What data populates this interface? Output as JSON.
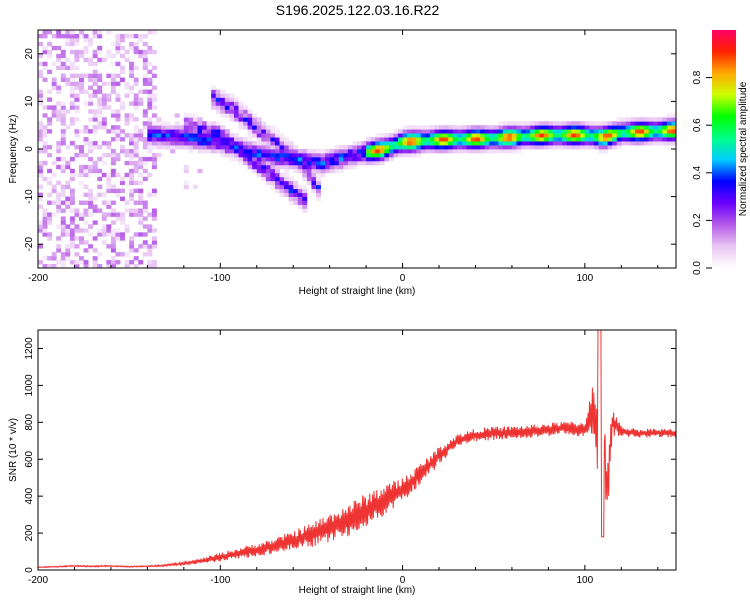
{
  "title": "S196.2025.122.03.16.R22",
  "chart_data": [
    {
      "type": "heatmap",
      "xlabel": "Height of straight line (km)",
      "ylabel": "Frequency (Hz)",
      "xlim": [
        -200,
        150
      ],
      "ylim": [
        -25,
        25
      ],
      "x_ticks": [
        -200,
        -100,
        0,
        100
      ],
      "y_ticks": [
        -20,
        -10,
        0,
        10,
        20
      ],
      "colorbar": {
        "label": "Normalized spectral amplitude",
        "range": [
          0,
          1
        ],
        "ticks": [
          "0.0",
          "0.2",
          "0.4",
          "0.6",
          "0.8"
        ],
        "colors": [
          "#ffffff",
          "#e9c6f3",
          "#b55ae8",
          "#6b00ff",
          "#0000ff",
          "#00ccff",
          "#00ff88",
          "#00ff00",
          "#ccff00",
          "#ffaa00",
          "#ff2200",
          "#ff0066"
        ]
      },
      "ridges": [
        {
          "name": "main-ridge",
          "points": [
            [
              -140,
              3
            ],
            [
              -120,
              2.5
            ],
            [
              -100,
              1.5
            ],
            [
              -80,
              -1
            ],
            [
              -60,
              -2
            ],
            [
              -45,
              -3
            ],
            [
              -35,
              -2
            ],
            [
              -25,
              -1
            ],
            [
              -10,
              0
            ],
            [
              0,
              1.5
            ],
            [
              20,
              2
            ],
            [
              50,
              2.3
            ],
            [
              80,
              3
            ],
            [
              100,
              3
            ],
            [
              110,
              2.5
            ],
            [
              120,
              3.5
            ],
            [
              150,
              4
            ]
          ]
        },
        {
          "name": "upper-branch",
          "points": [
            [
              -105,
              11
            ],
            [
              -95,
              9
            ],
            [
              -85,
              6
            ],
            [
              -75,
              3
            ],
            [
              -65,
              0
            ],
            [
              -55,
              -3
            ],
            [
              -50,
              -6
            ],
            [
              -45,
              -9
            ]
          ]
        },
        {
          "name": "lower-branch",
          "points": [
            [
              -120,
              5
            ],
            [
              -110,
              4
            ],
            [
              -100,
              3
            ],
            [
              -90,
              0
            ],
            [
              -80,
              -3
            ],
            [
              -70,
              -6
            ],
            [
              -60,
              -9
            ],
            [
              -52,
              -11
            ]
          ]
        }
      ]
    },
    {
      "type": "line",
      "xlabel": "Height of straight line (km)",
      "ylabel": "SNR (10 * v/v)",
      "xlim": [
        -200,
        150
      ],
      "ylim": [
        0,
        1300
      ],
      "x_ticks": [
        -200,
        -100,
        0,
        100
      ],
      "y_ticks": [
        0,
        200,
        400,
        600,
        800,
        1000,
        1200
      ],
      "color": "#ee3333",
      "series": [
        {
          "name": "SNR",
          "x": [
            -200,
            -190,
            -180,
            -170,
            -160,
            -150,
            -140,
            -130,
            -120,
            -110,
            -100,
            -90,
            -80,
            -70,
            -60,
            -50,
            -40,
            -30,
            -20,
            -10,
            0,
            10,
            20,
            30,
            40,
            50,
            60,
            70,
            80,
            90,
            100,
            105,
            108,
            110,
            112,
            115,
            120,
            130,
            140,
            150
          ],
          "y": [
            15,
            18,
            22,
            20,
            22,
            18,
            20,
            25,
            35,
            50,
            70,
            90,
            110,
            130,
            160,
            190,
            230,
            270,
            320,
            380,
            430,
            520,
            620,
            700,
            730,
            740,
            745,
            750,
            760,
            770,
            760,
            900,
            500,
            1000,
            400,
            800,
            750,
            740,
            745,
            740
          ]
        }
      ],
      "spread": [
        3,
        5,
        6,
        6,
        6,
        5,
        5,
        8,
        15,
        25,
        40,
        50,
        60,
        70,
        90,
        110,
        130,
        150,
        160,
        140,
        120,
        100,
        80,
        60,
        60,
        60,
        60,
        60,
        60,
        60,
        70,
        300,
        300,
        330,
        300,
        120,
        50,
        40,
        40,
        40
      ]
    }
  ]
}
